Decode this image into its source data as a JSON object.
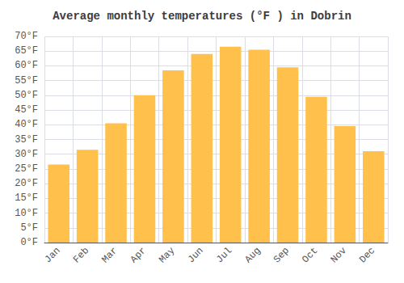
{
  "chart_data": {
    "type": "bar",
    "title": "Average monthly temperatures (°F ) in Dobrin",
    "categories": [
      "Jan",
      "Feb",
      "Mar",
      "Apr",
      "May",
      "Jun",
      "Jul",
      "Aug",
      "Sep",
      "Oct",
      "Nov",
      "Dec"
    ],
    "values": [
      26.5,
      31.5,
      40.5,
      50.0,
      58.5,
      64.0,
      66.5,
      65.5,
      59.5,
      49.5,
      39.5,
      31.0
    ],
    "color": "#FFC04C",
    "ylim": [
      0,
      70
    ],
    "yticks": [
      {
        "value": 0,
        "label": "0°F"
      },
      {
        "value": 5,
        "label": "5°F"
      },
      {
        "value": 10,
        "label": "10°F"
      },
      {
        "value": 15,
        "label": "15°F"
      },
      {
        "value": 20,
        "label": "20°F"
      },
      {
        "value": 25,
        "label": "25°F"
      },
      {
        "value": 30,
        "label": "30°F"
      },
      {
        "value": 35,
        "label": "35°F"
      },
      {
        "value": 40,
        "label": "40°F"
      },
      {
        "value": 45,
        "label": "45°F"
      },
      {
        "value": 50,
        "label": "50°F"
      },
      {
        "value": 55,
        "label": "55°F"
      },
      {
        "value": 60,
        "label": "60°F"
      },
      {
        "value": 65,
        "label": "65°F"
      },
      {
        "value": 70,
        "label": "70°F"
      }
    ],
    "grid": true
  }
}
